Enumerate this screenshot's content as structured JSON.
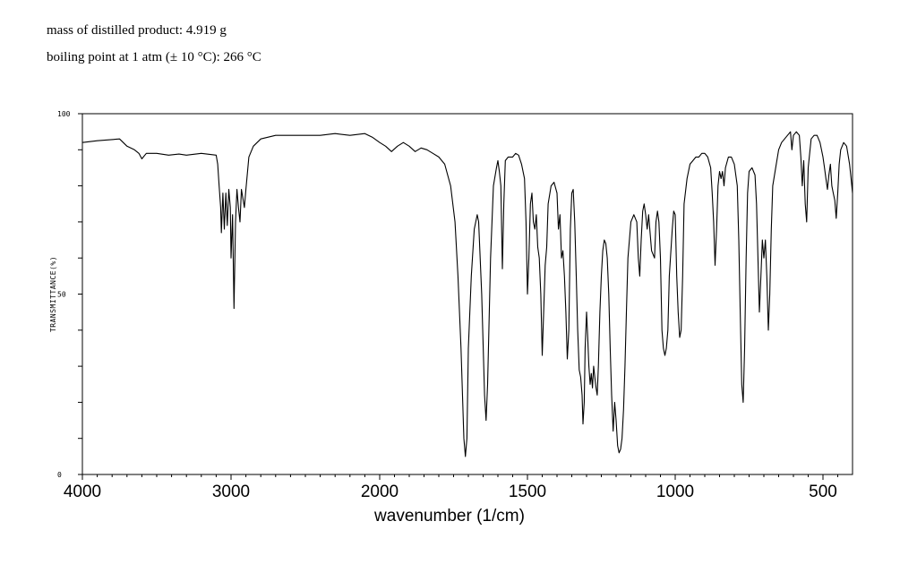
{
  "info": {
    "mass_line": "mass of distilled product:  4.919 g",
    "bp_line": "boiling point at 1 atm (± 10 °C):  266 °C"
  },
  "chart_data": {
    "type": "line",
    "title": "",
    "xlabel": "wavenumber (1/cm)",
    "ylabel": "TRANSMITTANCE(%)",
    "xlim": [
      4000,
      400
    ],
    "ylim": [
      0,
      100
    ],
    "x_ticks": [
      "4000",
      "3000",
      "2000",
      "1500",
      "1000",
      "500"
    ],
    "x_tick_values": [
      4000,
      3000,
      2000,
      1500,
      1000,
      500
    ],
    "y_ticks": [
      "0",
      "50",
      "100"
    ],
    "y_tick_values": [
      0,
      50,
      100
    ],
    "grid": false,
    "series": [
      {
        "points": [
          [
            4000,
            92
          ],
          [
            3900,
            92.5
          ],
          [
            3750,
            93
          ],
          [
            3700,
            91
          ],
          [
            3650,
            90
          ],
          [
            3620,
            89
          ],
          [
            3600,
            87.5
          ],
          [
            3570,
            89
          ],
          [
            3500,
            89
          ],
          [
            3420,
            88.5
          ],
          [
            3350,
            88.8
          ],
          [
            3300,
            88.5
          ],
          [
            3200,
            89
          ],
          [
            3100,
            88.5
          ],
          [
            3090,
            86
          ],
          [
            3080,
            80
          ],
          [
            3070,
            74
          ],
          [
            3065,
            67
          ],
          [
            3055,
            78
          ],
          [
            3045,
            68
          ],
          [
            3035,
            78
          ],
          [
            3025,
            69
          ],
          [
            3015,
            79
          ],
          [
            3005,
            74
          ],
          [
            3000,
            60
          ],
          [
            2990,
            72
          ],
          [
            2980,
            46
          ],
          [
            2970,
            70
          ],
          [
            2960,
            79
          ],
          [
            2950,
            74
          ],
          [
            2940,
            70
          ],
          [
            2930,
            79
          ],
          [
            2910,
            74
          ],
          [
            2900,
            79
          ],
          [
            2880,
            88
          ],
          [
            2850,
            91
          ],
          [
            2800,
            93
          ],
          [
            2700,
            94
          ],
          [
            2600,
            94
          ],
          [
            2500,
            94
          ],
          [
            2400,
            94
          ],
          [
            2300,
            94.5
          ],
          [
            2200,
            94
          ],
          [
            2100,
            94.5
          ],
          [
            2050,
            93.5
          ],
          [
            2000,
            92
          ],
          [
            1980,
            91
          ],
          [
            1960,
            89.5
          ],
          [
            1940,
            91
          ],
          [
            1920,
            92
          ],
          [
            1900,
            91
          ],
          [
            1880,
            89.5
          ],
          [
            1860,
            90.5
          ],
          [
            1840,
            90
          ],
          [
            1820,
            89
          ],
          [
            1800,
            88
          ],
          [
            1780,
            86
          ],
          [
            1760,
            80
          ],
          [
            1745,
            70
          ],
          [
            1735,
            55
          ],
          [
            1725,
            35
          ],
          [
            1715,
            10
          ],
          [
            1710,
            5
          ],
          [
            1705,
            10
          ],
          [
            1700,
            35
          ],
          [
            1690,
            55
          ],
          [
            1680,
            68
          ],
          [
            1670,
            72
          ],
          [
            1665,
            70
          ],
          [
            1655,
            50
          ],
          [
            1645,
            22
          ],
          [
            1640,
            15
          ],
          [
            1635,
            25
          ],
          [
            1625,
            60
          ],
          [
            1615,
            80
          ],
          [
            1605,
            85
          ],
          [
            1600,
            87
          ],
          [
            1595,
            84
          ],
          [
            1590,
            80
          ],
          [
            1585,
            57
          ],
          [
            1580,
            75
          ],
          [
            1575,
            87
          ],
          [
            1565,
            88
          ],
          [
            1550,
            88
          ],
          [
            1540,
            89
          ],
          [
            1530,
            88.5
          ],
          [
            1520,
            86
          ],
          [
            1510,
            82
          ],
          [
            1505,
            70
          ],
          [
            1500,
            50
          ],
          [
            1495,
            60
          ],
          [
            1490,
            75
          ],
          [
            1485,
            78
          ],
          [
            1480,
            70
          ],
          [
            1475,
            68
          ],
          [
            1470,
            72
          ],
          [
            1465,
            63
          ],
          [
            1460,
            60
          ],
          [
            1455,
            50
          ],
          [
            1450,
            33
          ],
          [
            1445,
            45
          ],
          [
            1440,
            58
          ],
          [
            1435,
            63
          ],
          [
            1430,
            75
          ],
          [
            1420,
            80
          ],
          [
            1410,
            81
          ],
          [
            1400,
            78
          ],
          [
            1395,
            68
          ],
          [
            1390,
            72
          ],
          [
            1385,
            60
          ],
          [
            1380,
            62
          ],
          [
            1375,
            55
          ],
          [
            1370,
            45
          ],
          [
            1365,
            32
          ],
          [
            1360,
            40
          ],
          [
            1355,
            68
          ],
          [
            1350,
            78
          ],
          [
            1345,
            79
          ],
          [
            1340,
            70
          ],
          [
            1335,
            55
          ],
          [
            1330,
            40
          ],
          [
            1325,
            29
          ],
          [
            1320,
            27
          ],
          [
            1315,
            22
          ],
          [
            1312,
            14
          ],
          [
            1308,
            20
          ],
          [
            1305,
            35
          ],
          [
            1300,
            45
          ],
          [
            1296,
            38
          ],
          [
            1292,
            30
          ],
          [
            1288,
            25
          ],
          [
            1284,
            28
          ],
          [
            1280,
            24
          ],
          [
            1276,
            30
          ],
          [
            1272,
            27
          ],
          [
            1268,
            24
          ],
          [
            1264,
            22
          ],
          [
            1260,
            30
          ],
          [
            1255,
            45
          ],
          [
            1250,
            55
          ],
          [
            1245,
            62
          ],
          [
            1240,
            65
          ],
          [
            1235,
            64
          ],
          [
            1230,
            60
          ],
          [
            1225,
            50
          ],
          [
            1220,
            35
          ],
          [
            1215,
            22
          ],
          [
            1210,
            12
          ],
          [
            1205,
            20
          ],
          [
            1200,
            15
          ],
          [
            1195,
            8
          ],
          [
            1190,
            6
          ],
          [
            1185,
            7
          ],
          [
            1180,
            10
          ],
          [
            1175,
            18
          ],
          [
            1170,
            30
          ],
          [
            1165,
            45
          ],
          [
            1160,
            60
          ],
          [
            1150,
            70
          ],
          [
            1140,
            72
          ],
          [
            1130,
            70
          ],
          [
            1125,
            60
          ],
          [
            1120,
            55
          ],
          [
            1115,
            65
          ],
          [
            1110,
            73
          ],
          [
            1105,
            75
          ],
          [
            1100,
            72
          ],
          [
            1095,
            68
          ],
          [
            1090,
            72
          ],
          [
            1080,
            62
          ],
          [
            1070,
            60
          ],
          [
            1065,
            70
          ],
          [
            1060,
            73
          ],
          [
            1055,
            70
          ],
          [
            1050,
            60
          ],
          [
            1045,
            40
          ],
          [
            1040,
            35
          ],
          [
            1035,
            33
          ],
          [
            1030,
            35
          ],
          [
            1025,
            40
          ],
          [
            1020,
            55
          ],
          [
            1010,
            68
          ],
          [
            1005,
            73
          ],
          [
            1000,
            72
          ],
          [
            995,
            55
          ],
          [
            990,
            45
          ],
          [
            985,
            38
          ],
          [
            980,
            40
          ],
          [
            975,
            55
          ],
          [
            970,
            75
          ],
          [
            960,
            82
          ],
          [
            950,
            86
          ],
          [
            940,
            87
          ],
          [
            930,
            88
          ],
          [
            920,
            88
          ],
          [
            910,
            89
          ],
          [
            900,
            89
          ],
          [
            890,
            88
          ],
          [
            880,
            85
          ],
          [
            875,
            78
          ],
          [
            870,
            70
          ],
          [
            865,
            58
          ],
          [
            860,
            68
          ],
          [
            855,
            80
          ],
          [
            850,
            84
          ],
          [
            845,
            82
          ],
          [
            840,
            84
          ],
          [
            835,
            80
          ],
          [
            830,
            85
          ],
          [
            820,
            88
          ],
          [
            810,
            88
          ],
          [
            800,
            86
          ],
          [
            790,
            80
          ],
          [
            785,
            65
          ],
          [
            780,
            45
          ],
          [
            775,
            25
          ],
          [
            770,
            20
          ],
          [
            765,
            35
          ],
          [
            760,
            60
          ],
          [
            755,
            78
          ],
          [
            750,
            84
          ],
          [
            740,
            85
          ],
          [
            730,
            83
          ],
          [
            725,
            75
          ],
          [
            720,
            60
          ],
          [
            715,
            45
          ],
          [
            710,
            55
          ],
          [
            705,
            65
          ],
          [
            700,
            60
          ],
          [
            695,
            65
          ],
          [
            690,
            55
          ],
          [
            685,
            40
          ],
          [
            680,
            50
          ],
          [
            675,
            68
          ],
          [
            670,
            80
          ],
          [
            660,
            85
          ],
          [
            650,
            90
          ],
          [
            640,
            92
          ],
          [
            630,
            93
          ],
          [
            620,
            94
          ],
          [
            610,
            95
          ],
          [
            605,
            90
          ],
          [
            600,
            94
          ],
          [
            590,
            95
          ],
          [
            580,
            94
          ],
          [
            575,
            88
          ],
          [
            570,
            80
          ],
          [
            565,
            87
          ],
          [
            560,
            75
          ],
          [
            555,
            70
          ],
          [
            550,
            85
          ],
          [
            540,
            93
          ],
          [
            530,
            94
          ],
          [
            520,
            94
          ],
          [
            510,
            92
          ],
          [
            500,
            88
          ],
          [
            495,
            85
          ],
          [
            490,
            82
          ],
          [
            485,
            79
          ],
          [
            480,
            83
          ],
          [
            475,
            86
          ],
          [
            470,
            80
          ],
          [
            465,
            78
          ],
          [
            460,
            76
          ],
          [
            455,
            71
          ],
          [
            450,
            78
          ],
          [
            445,
            86
          ],
          [
            440,
            90
          ],
          [
            430,
            92
          ],
          [
            420,
            91
          ],
          [
            410,
            86
          ],
          [
            405,
            82
          ],
          [
            400,
            78
          ]
        ]
      }
    ]
  }
}
